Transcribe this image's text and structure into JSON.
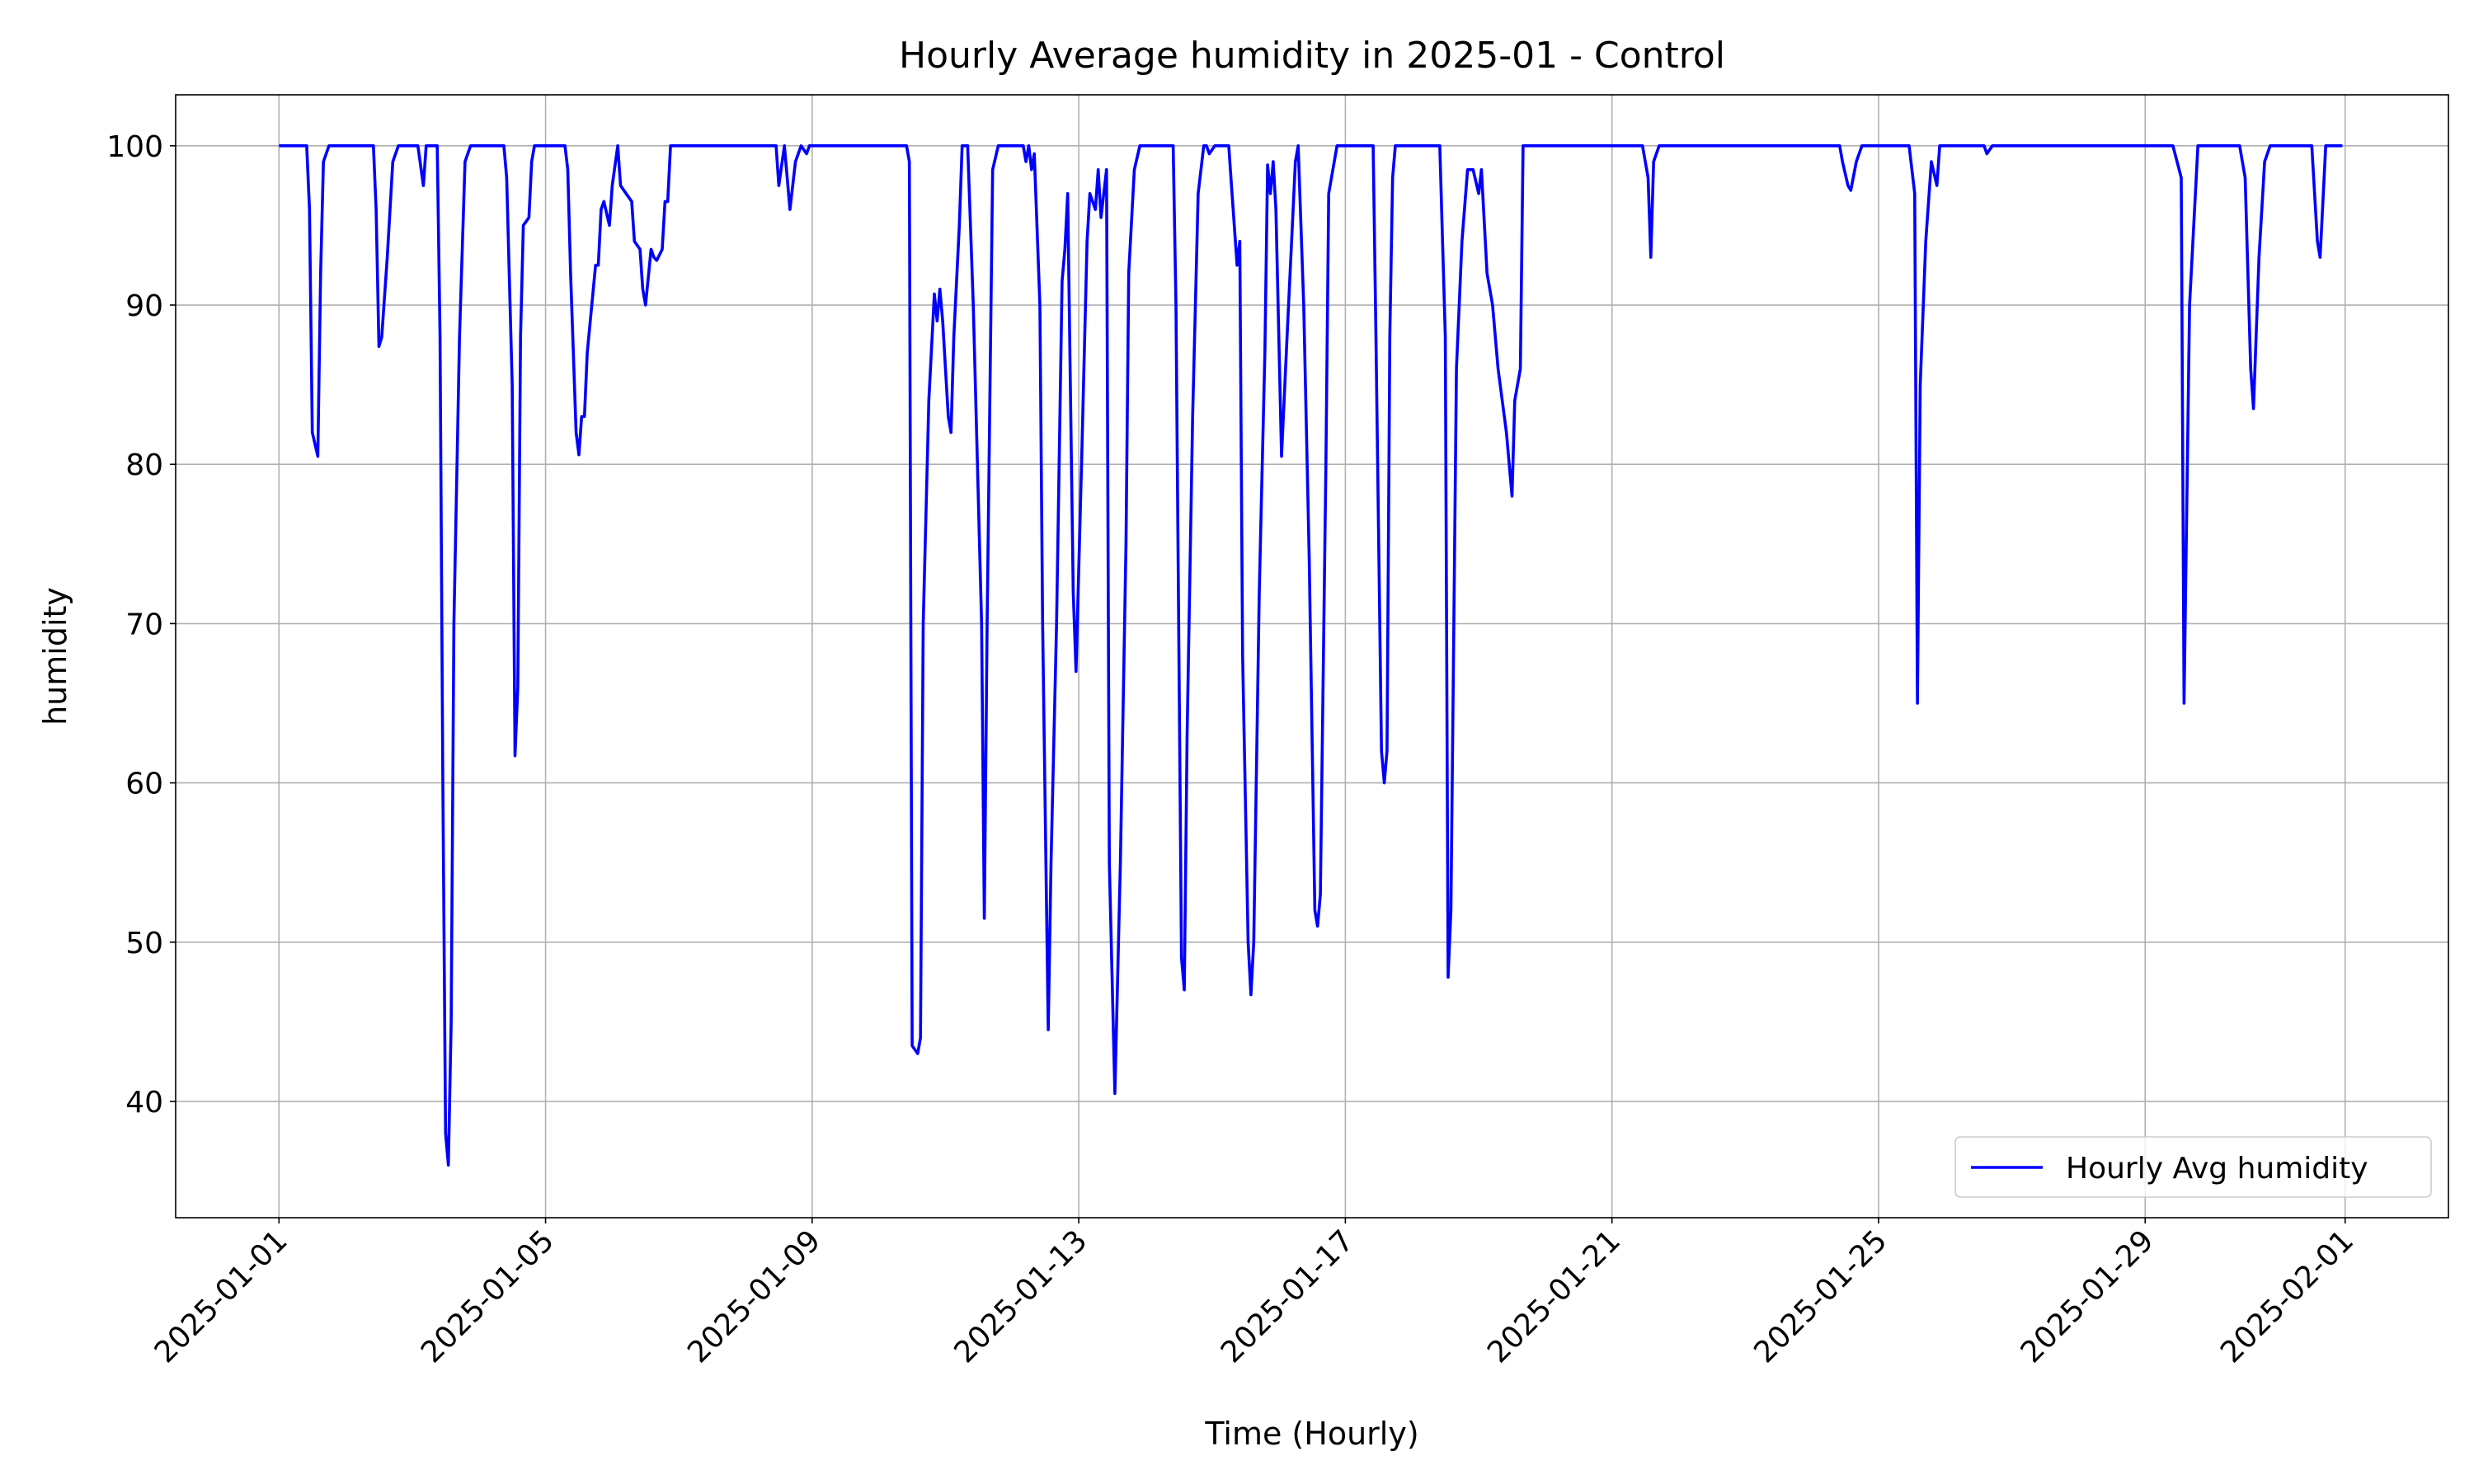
{
  "chart_data": {
    "type": "line",
    "title": "Hourly Average humidity in 2025-01 - Control",
    "x_label": "Time (Hourly)",
    "y_label": "humidity",
    "x": [
      "2025-01-01T00:00",
      "2025-01-01T10:00",
      "2025-01-01T11:00",
      "2025-01-01T12:00",
      "2025-01-01T14:00",
      "2025-01-01T15:00",
      "2025-01-01T16:00",
      "2025-01-01T18:00",
      "2025-01-02T10:00",
      "2025-01-02T11:00",
      "2025-01-02T12:00",
      "2025-01-02T13:00",
      "2025-01-02T15:00",
      "2025-01-02T17:00",
      "2025-01-02T19:00",
      "2025-01-03T02:00",
      "2025-01-03T04:00",
      "2025-01-03T05:00",
      "2025-01-03T09:00",
      "2025-01-03T10:00",
      "2025-01-03T11:00",
      "2025-01-03T12:00",
      "2025-01-03T13:00",
      "2025-01-03T14:00",
      "2025-01-03T15:00",
      "2025-01-03T17:00",
      "2025-01-03T19:00",
      "2025-01-03T21:00",
      "2025-01-04T09:00",
      "2025-01-04T10:00",
      "2025-01-04T12:00",
      "2025-01-04T13:00",
      "2025-01-04T14:00",
      "2025-01-04T15:00",
      "2025-01-04T16:00",
      "2025-01-04T18:00",
      "2025-01-04T19:00",
      "2025-01-04T20:00",
      "2025-01-05T07:00",
      "2025-01-05T08:00",
      "2025-01-05T09:00",
      "2025-01-05T11:00",
      "2025-01-05T12:00",
      "2025-01-05T13:00",
      "2025-01-05T14:00",
      "2025-01-05T15:00",
      "2025-01-05T18:00",
      "2025-01-05T19:00",
      "2025-01-05T20:00",
      "2025-01-05T21:00",
      "2025-01-05T23:00",
      "2025-01-06T00:00",
      "2025-01-06T02:00",
      "2025-01-06T03:00",
      "2025-01-06T05:00",
      "2025-01-06T07:00",
      "2025-01-06T08:00",
      "2025-01-06T10:00",
      "2025-01-06T11:00",
      "2025-01-06T12:00",
      "2025-01-06T14:00",
      "2025-01-06T15:00",
      "2025-01-06T16:00",
      "2025-01-06T18:00",
      "2025-01-06T19:00",
      "2025-01-06T20:00",
      "2025-01-06T21:00",
      "2025-01-08T11:00",
      "2025-01-08T12:00",
      "2025-01-08T14:00",
      "2025-01-08T16:00",
      "2025-01-08T18:00",
      "2025-01-08T20:00",
      "2025-01-08T22:00",
      "2025-01-08T23:00",
      "2025-01-10T10:00",
      "2025-01-10T11:00",
      "2025-01-10T12:00",
      "2025-01-10T14:00",
      "2025-01-10T15:00",
      "2025-01-10T16:00",
      "2025-01-10T18:00",
      "2025-01-10T20:00",
      "2025-01-10T21:00",
      "2025-01-10T22:00",
      "2025-01-10T23:00",
      "2025-01-11T01:00",
      "2025-01-11T02:00",
      "2025-01-11T03:00",
      "2025-01-11T05:00",
      "2025-01-11T06:00",
      "2025-01-11T08:00",
      "2025-01-11T10:00",
      "2025-01-11T13:00",
      "2025-01-11T14:00",
      "2025-01-11T15:00",
      "2025-01-11T17:00",
      "2025-01-11T19:00",
      "2025-01-12T04:00",
      "2025-01-12T05:00",
      "2025-01-12T06:00",
      "2025-01-12T07:00",
      "2025-01-12T08:00",
      "2025-01-12T10:00",
      "2025-01-12T11:00",
      "2025-01-12T13:00",
      "2025-01-12T14:00",
      "2025-01-12T16:00",
      "2025-01-12T18:00",
      "2025-01-12T19:00",
      "2025-01-12T20:00",
      "2025-01-12T22:00",
      "2025-01-12T23:00",
      "2025-01-13T01:00",
      "2025-01-13T03:00",
      "2025-01-13T04:00",
      "2025-01-13T06:00",
      "2025-01-13T07:00",
      "2025-01-13T08:00",
      "2025-01-13T10:00",
      "2025-01-13T11:00",
      "2025-01-13T13:00",
      "2025-01-13T15:00",
      "2025-01-13T17:00",
      "2025-01-13T18:00",
      "2025-01-13T20:00",
      "2025-01-13T22:00",
      "2025-01-14T10:00",
      "2025-01-14T11:00",
      "2025-01-14T13:00",
      "2025-01-14T14:00",
      "2025-01-14T15:00",
      "2025-01-14T17:00",
      "2025-01-14T19:00",
      "2025-01-14T21:00",
      "2025-01-14T22:00",
      "2025-01-14T23:00",
      "2025-01-15T01:00",
      "2025-01-15T06:00",
      "2025-01-15T07:00",
      "2025-01-15T09:00",
      "2025-01-15T10:00",
      "2025-01-15T11:00",
      "2025-01-15T13:00",
      "2025-01-15T14:00",
      "2025-01-15T15:00",
      "2025-01-15T17:00",
      "2025-01-15T19:00",
      "2025-01-15T20:00",
      "2025-01-15T21:00",
      "2025-01-15T22:00",
      "2025-01-15T23:00",
      "2025-01-16T01:00",
      "2025-01-16T03:00",
      "2025-01-16T06:00",
      "2025-01-16T07:00",
      "2025-01-16T09:00",
      "2025-01-16T11:00",
      "2025-01-16T13:00",
      "2025-01-16T14:00",
      "2025-01-16T15:00",
      "2025-01-16T17:00",
      "2025-01-16T18:00",
      "2025-01-16T21:00",
      "2025-01-17T10:00",
      "2025-01-17T11:00",
      "2025-01-17T13:00",
      "2025-01-17T14:00",
      "2025-01-17T15:00",
      "2025-01-17T16:00",
      "2025-01-17T17:00",
      "2025-01-17T18:00",
      "2025-01-18T10:00",
      "2025-01-18T12:00",
      "2025-01-18T13:00",
      "2025-01-18T14:00",
      "2025-01-18T16:00",
      "2025-01-18T18:00",
      "2025-01-18T20:00",
      "2025-01-18T22:00",
      "2025-01-19T00:00",
      "2025-01-19T01:00",
      "2025-01-19T03:00",
      "2025-01-19T05:00",
      "2025-01-19T07:00",
      "2025-01-19T10:00",
      "2025-01-19T11:00",
      "2025-01-19T12:00",
      "2025-01-19T13:00",
      "2025-01-19T15:00",
      "2025-01-19T16:00",
      "2025-01-21T11:00",
      "2025-01-21T13:00",
      "2025-01-21T14:00",
      "2025-01-21T15:00",
      "2025-01-21T17:00",
      "2025-01-24T10:00",
      "2025-01-24T11:00",
      "2025-01-24T13:00",
      "2025-01-24T14:00",
      "2025-01-24T16:00",
      "2025-01-24T18:00",
      "2025-01-25T11:00",
      "2025-01-25T13:00",
      "2025-01-25T14:00",
      "2025-01-25T15:00",
      "2025-01-25T17:00",
      "2025-01-25T19:00",
      "2025-01-25T21:00",
      "2025-01-25T22:00",
      "2025-01-26T14:00",
      "2025-01-26T15:00",
      "2025-01-26T17:00",
      "2025-01-29T10:00",
      "2025-01-29T13:00",
      "2025-01-29T14:00",
      "2025-01-29T16:00",
      "2025-01-29T19:00",
      "2025-01-30T10:00",
      "2025-01-30T12:00",
      "2025-01-30T14:00",
      "2025-01-30T15:00",
      "2025-01-30T17:00",
      "2025-01-30T19:00",
      "2025-01-30T21:00",
      "2025-01-31T12:00",
      "2025-01-31T14:00",
      "2025-01-31T15:00",
      "2025-01-31T17:00",
      "2025-01-31T23:00"
    ],
    "series": [
      {
        "name": "Hourly Avg humidity",
        "color": "#0000ff",
        "values": [
          100,
          100,
          96,
          82,
          80.5,
          92,
          99,
          100,
          100,
          96,
          87.4,
          88,
          93,
          99,
          100,
          100,
          97.5,
          100,
          100,
          88,
          60,
          38,
          36,
          45,
          70,
          88,
          99,
          100,
          100,
          98,
          85,
          61.7,
          66,
          88,
          95,
          95.5,
          99,
          100,
          100,
          98.5,
          92,
          82,
          80.6,
          83,
          83,
          87,
          92.5,
          92.5,
          96,
          96.5,
          95,
          97.5,
          100,
          97.5,
          97,
          96.5,
          94,
          93.5,
          91,
          90,
          93.5,
          93,
          92.8,
          93.5,
          96.5,
          96.5,
          100,
          100,
          97.5,
          100,
          96,
          99,
          100,
          99.5,
          100,
          100,
          99,
          43.5,
          43,
          44,
          70,
          84,
          90.7,
          89,
          91,
          89,
          83,
          82,
          88,
          95,
          100,
          100,
          90,
          70,
          51.5,
          70,
          98.5,
          100,
          100,
          99,
          100,
          98.5,
          99.5,
          90,
          70,
          44.5,
          55,
          70,
          91.5,
          93.5,
          97,
          72,
          67,
          80,
          94,
          97,
          96,
          98.5,
          95.5,
          98.5,
          55,
          40.5,
          55,
          75,
          92,
          98.5,
          100,
          100,
          90,
          49,
          47,
          63,
          83,
          97,
          100,
          100,
          99.5,
          100,
          100,
          97.5,
          92.5,
          94,
          68,
          50,
          46.7,
          50,
          72,
          87,
          98.8,
          97,
          99,
          96,
          80.5,
          88,
          99,
          100,
          90,
          74,
          52,
          51,
          53,
          80,
          97,
          100,
          100,
          88,
          62,
          60,
          62,
          88,
          98,
          100,
          100,
          88,
          47.8,
          52,
          86,
          94,
          98.5,
          98.5,
          97,
          98.5,
          92,
          90,
          86,
          82,
          80,
          78,
          84,
          86,
          100,
          100,
          98,
          93,
          99,
          100,
          100,
          99,
          97.5,
          97.2,
          99,
          100,
          100,
          97,
          65,
          85,
          94,
          99,
          97.5,
          100,
          100,
          99.5,
          100,
          100,
          98,
          65,
          90,
          100,
          100,
          98,
          86,
          83.5,
          93,
          99,
          100,
          100,
          94,
          93,
          100,
          100
        ]
      }
    ],
    "xlim": [
      "2024-12-30T10:48",
      "2025-02-02T13:12"
    ],
    "xticks": [
      "2025-01-01",
      "2025-01-05",
      "2025-01-09",
      "2025-01-13",
      "2025-01-17",
      "2025-01-21",
      "2025-01-25",
      "2025-01-29",
      "2025-02-01"
    ],
    "ylim": [
      32.7,
      103.2
    ],
    "yticks": [
      40,
      50,
      60,
      70,
      80,
      90,
      100
    ],
    "grid": true,
    "legend": "lower right"
  }
}
